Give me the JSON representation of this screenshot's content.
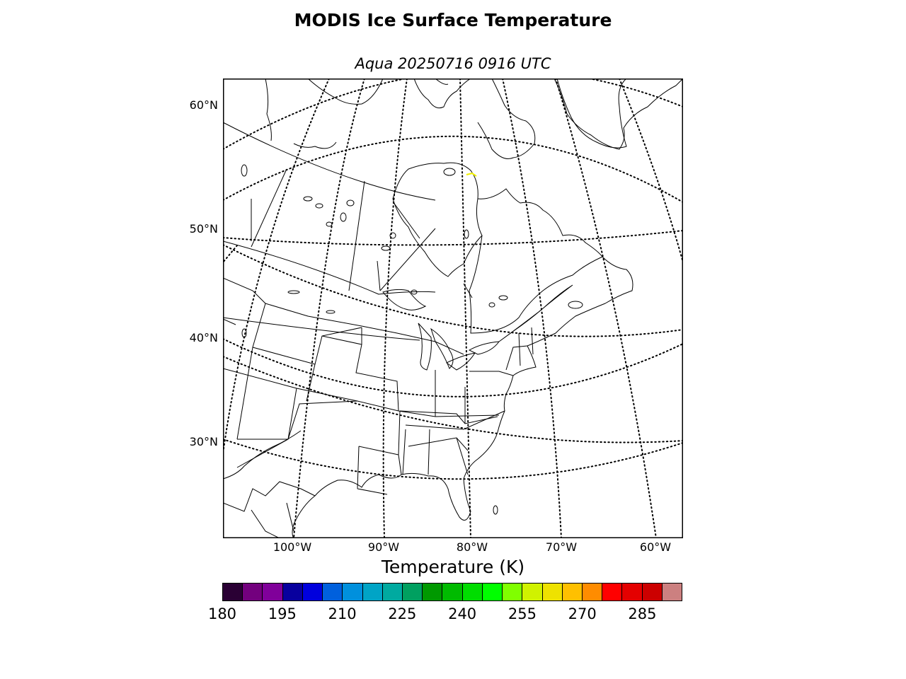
{
  "title": "MODIS Ice Surface Temperature",
  "subtitle": "Aqua 20250716 0916 UTC",
  "map": {
    "projection": "lambert-conformal",
    "region": "eastern North America",
    "lat_labels": [
      "60°N",
      "50°N",
      "40°N",
      "30°N"
    ],
    "lon_labels": [
      "100°W",
      "90°W",
      "80°W",
      "70°W",
      "60°W"
    ],
    "graticule_style": "dotted",
    "data_highlight_color": "#f0f000"
  },
  "colorbar": {
    "title": "Temperature (K)",
    "tick_labels": [
      "180",
      "195",
      "210",
      "225",
      "240",
      "255",
      "270",
      "285"
    ],
    "min": 180,
    "max": 295,
    "step": 5,
    "colors": [
      "#2a0034",
      "#73007e",
      "#80009a",
      "#08009e",
      "#0000dd",
      "#0060dd",
      "#0090dd",
      "#00a4c6",
      "#00aaa0",
      "#00a060",
      "#009900",
      "#00bb00",
      "#00dd00",
      "#00ff00",
      "#80ff00",
      "#d0f200",
      "#eee200",
      "#ffc000",
      "#ff8c00",
      "#ff0000",
      "#e40000",
      "#cc0000",
      "#cc8080"
    ]
  }
}
